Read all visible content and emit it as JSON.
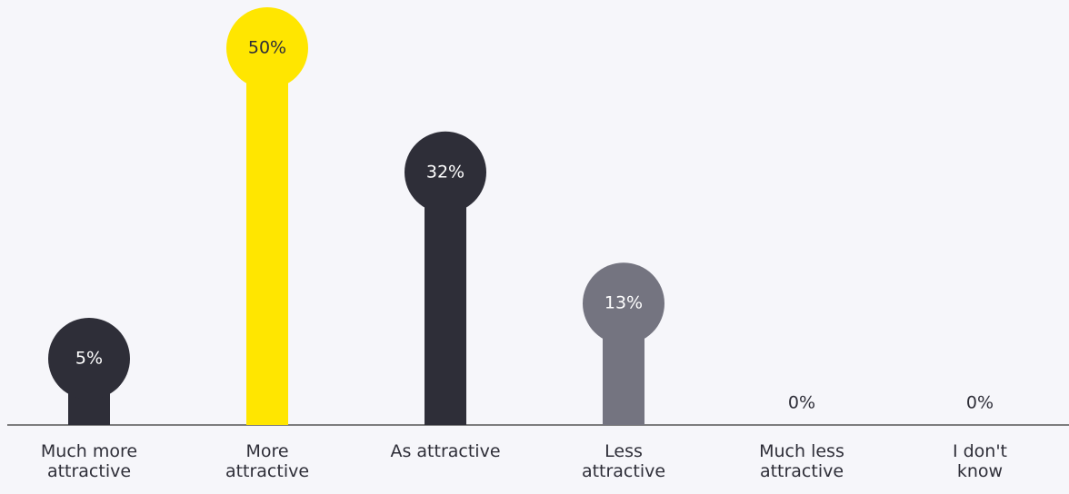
{
  "chart_data": {
    "type": "lollipop",
    "categories": [
      "Much more\nattractive",
      "More\nattractive",
      "As attractive",
      "Less\nattractive",
      "Much less\nattractive",
      "I don't\nknow"
    ],
    "values": [
      5,
      50,
      32,
      13,
      0,
      0
    ],
    "value_labels": [
      "5%",
      "50%",
      "32%",
      "13%",
      "0%",
      "0%"
    ],
    "colors": [
      "#2e2e38",
      "#ffe600",
      "#2e2e38",
      "#747480",
      "#2e2e38",
      "#2e2e38"
    ]
  }
}
